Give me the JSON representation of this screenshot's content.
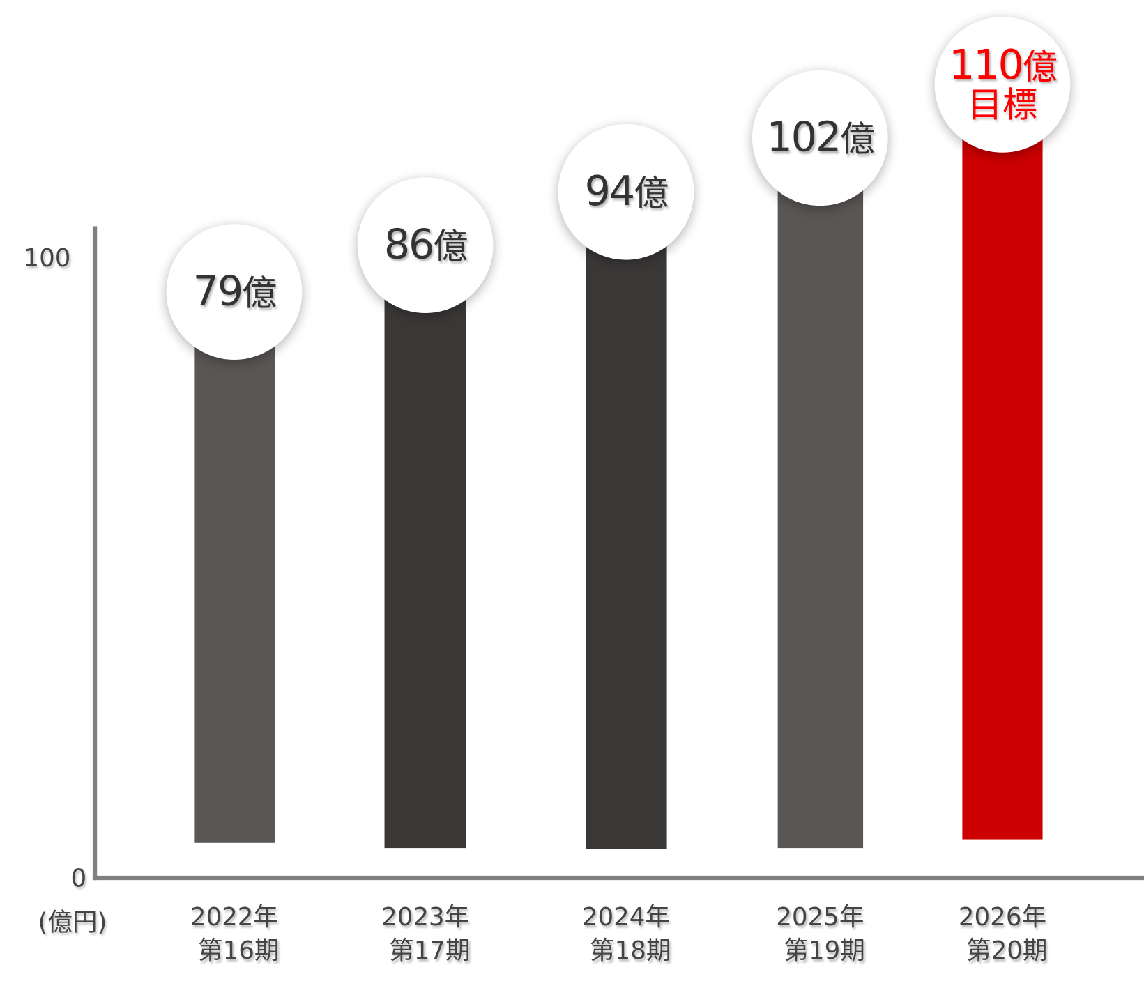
{
  "chart_data": {
    "type": "bar",
    "title": "",
    "xlabel": "",
    "ylabel": "(億円)",
    "ylim": [
      0,
      100
    ],
    "yticks": [
      "0",
      "100"
    ],
    "unit_suffix": "億",
    "categories": [
      {
        "year": "2022年",
        "period": "第16期"
      },
      {
        "year": "2023年",
        "period": "第17期"
      },
      {
        "year": "2024年",
        "period": "第18期"
      },
      {
        "year": "2025年",
        "period": "第19期"
      },
      {
        "year": "2026年",
        "period": "第20期"
      }
    ],
    "values": [
      79,
      86,
      94,
      102,
      110
    ],
    "value_labels": [
      "79",
      "86",
      "94",
      "102",
      "110"
    ],
    "target_note": "目標",
    "colors": [
      "#5a5655",
      "#3a3837",
      "#3a3837",
      "#5a5655",
      "#cc0000"
    ]
  }
}
